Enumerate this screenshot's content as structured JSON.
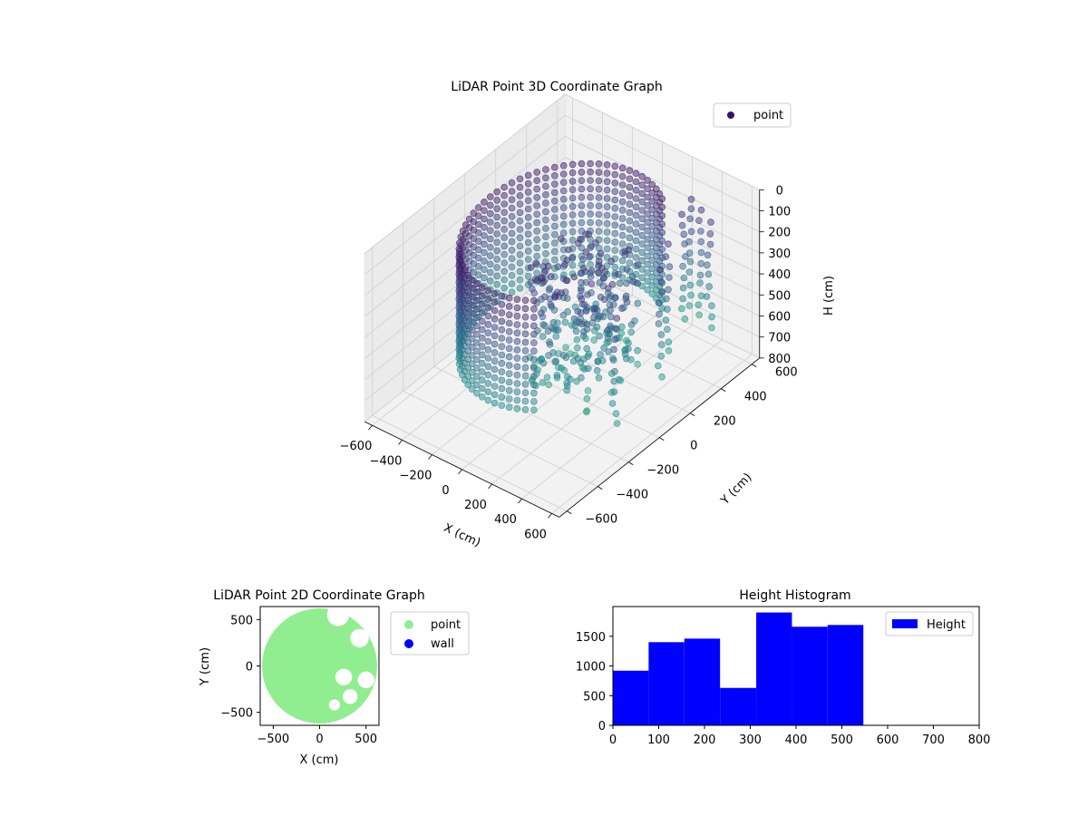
{
  "chart_data": [
    {
      "type": "scatter",
      "projection": "3d",
      "title": "LiDAR Point 3D Coordinate Graph",
      "xlabel": "X (cm)",
      "ylabel": "Y (cm)",
      "zlabel": "H (cm)",
      "xticks": [
        "−600",
        "−400",
        "−200",
        "0",
        "200",
        "400",
        "600"
      ],
      "yticks": [
        "−600",
        "−400",
        "−200",
        "0",
        "200",
        "400",
        "600"
      ],
      "zticks": [
        "0",
        "100",
        "200",
        "300",
        "400",
        "500",
        "600",
        "700",
        "800"
      ],
      "xlim": [
        -650,
        650
      ],
      "ylim": [
        -650,
        650
      ],
      "zlim": [
        800,
        0
      ],
      "zinverted": true,
      "grid": true,
      "legend": {
        "placement": "upper right",
        "entries": [
          {
            "label": "point",
            "color": "#3b0f70"
          }
        ]
      },
      "colormap": "viridis",
      "series": [
        {
          "name": "point",
          "description_of_shape": "ring wall",
          "ring_radius": 480,
          "ring_angles_deg": [
            60,
            300
          ],
          "h_range": [
            50,
            600
          ]
        },
        {
          "name": "point",
          "description_of_shape": "central cluster",
          "center": [
            150,
            0
          ],
          "spread": 260,
          "h_range": [
            100,
            700
          ]
        },
        {
          "name": "point",
          "description_of_shape": "right columns",
          "columns": [
            [
              300,
              500
            ],
            [
              400,
              300
            ],
            [
              500,
              150
            ],
            [
              560,
              -200
            ],
            [
              450,
              520
            ],
            [
              350,
              560
            ],
            [
              250,
              590
            ]
          ],
          "h_range": [
            150,
            650
          ]
        }
      ]
    },
    {
      "type": "scatter",
      "title": "LiDAR Point 2D Coordinate Graph",
      "xlabel": "X (cm)",
      "ylabel": "Y (cm)",
      "xticks": [
        "−500",
        "0",
        "500"
      ],
      "yticks": [
        "−500",
        "0",
        "500"
      ],
      "xlim": [
        -640,
        640
      ],
      "ylim": [
        -640,
        640
      ],
      "legend": {
        "placement": "outside right",
        "entries": [
          {
            "label": "point",
            "color": "#90ee90"
          },
          {
            "label": "wall",
            "color": "#0000ff"
          }
        ]
      },
      "shape": {
        "disc_center": [
          0,
          0
        ],
        "disc_radius": 620,
        "gaps": [
          [
            200,
            550,
            120
          ],
          [
            430,
            300,
            100
          ],
          [
            260,
            -120,
            90
          ],
          [
            330,
            -330,
            80
          ],
          [
            160,
            -420,
            60
          ],
          [
            500,
            -150,
            90
          ]
        ]
      }
    },
    {
      "type": "bar",
      "title": "Height Histogram",
      "legend": {
        "placement": "upper right",
        "entries": [
          {
            "label": "Height",
            "color": "#0000ff"
          }
        ]
      },
      "bins": [
        {
          "from": 0,
          "to": 78,
          "count": 920
        },
        {
          "from": 78,
          "to": 156,
          "count": 1400
        },
        {
          "from": 156,
          "to": 234,
          "count": 1460
        },
        {
          "from": 234,
          "to": 313,
          "count": 630
        },
        {
          "from": 313,
          "to": 391,
          "count": 1900
        },
        {
          "from": 391,
          "to": 469,
          "count": 1660
        },
        {
          "from": 469,
          "to": 547,
          "count": 1690
        }
      ],
      "xlim": [
        0,
        800
      ],
      "ylim": [
        0,
        2000
      ],
      "xticks": [
        "0",
        "100",
        "200",
        "300",
        "400",
        "500",
        "600",
        "700",
        "800"
      ],
      "yticks": [
        "0",
        "500",
        "1000",
        "1500"
      ],
      "color": "#0000ff"
    }
  ]
}
